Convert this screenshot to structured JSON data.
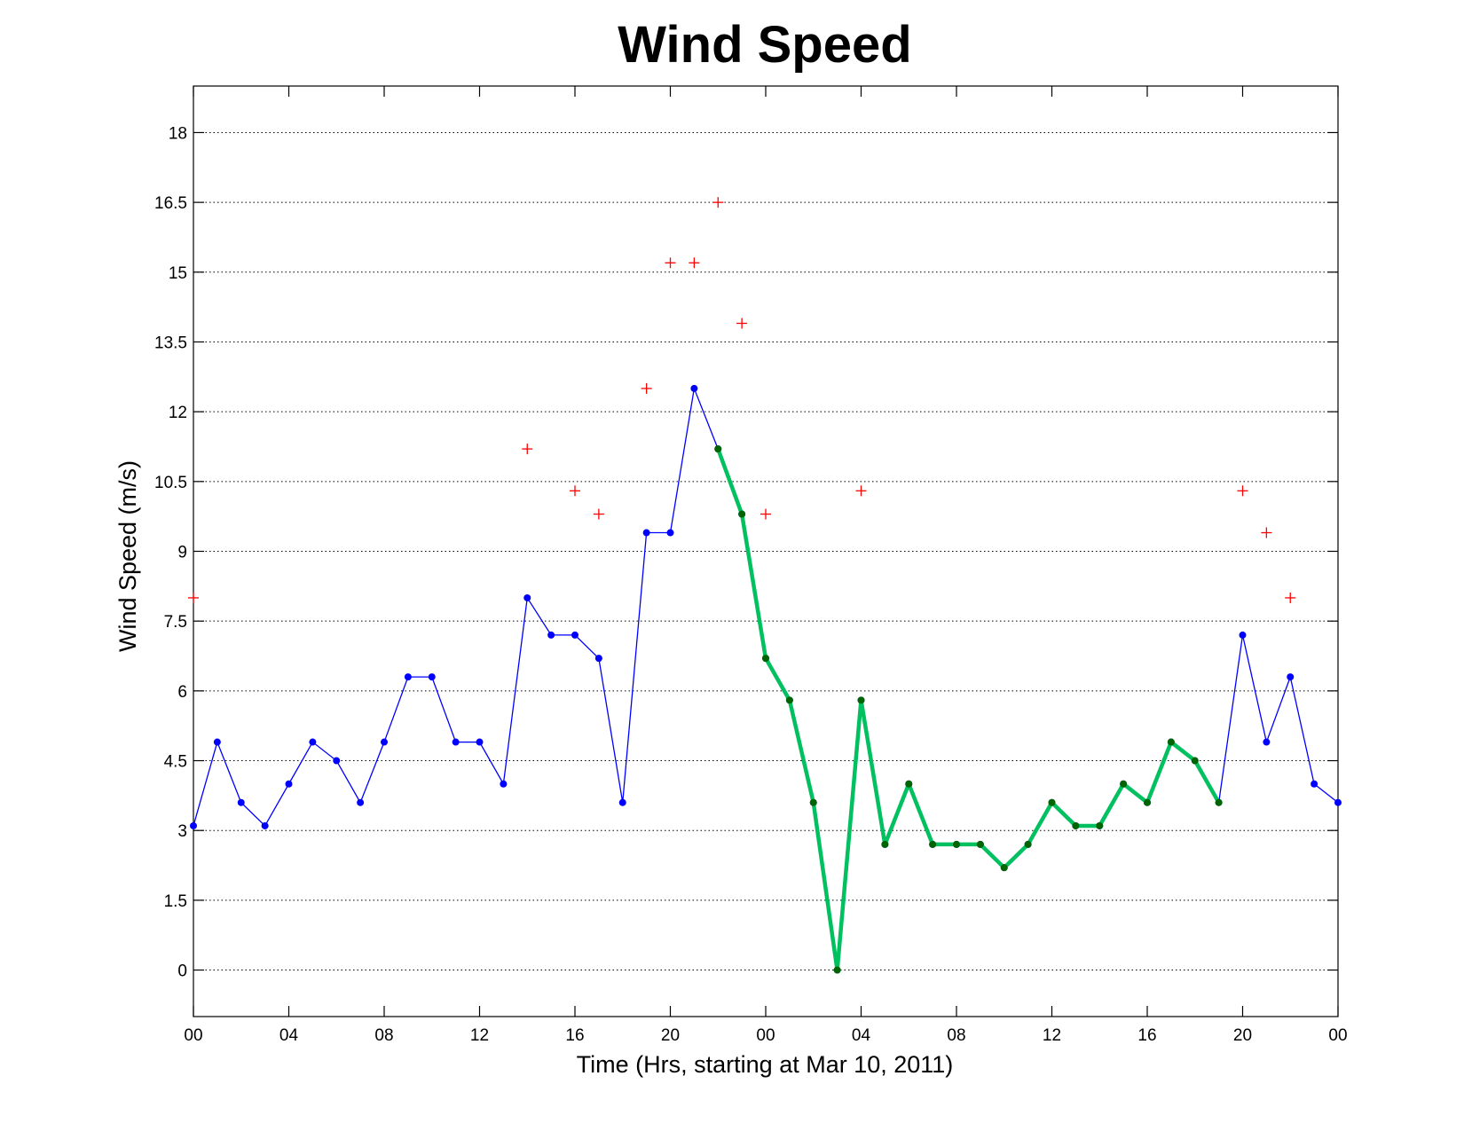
{
  "chart_data": {
    "type": "line",
    "title": "Wind Speed",
    "xlabel": "Time (Hrs, starting at Mar 10, 2011)",
    "ylabel": "Wind Speed (m/s)",
    "x_unit": "hours",
    "xlim": [
      0,
      48
    ],
    "ylim": [
      -1,
      19
    ],
    "grid": true,
    "legend": "none",
    "x_ticks": [
      0,
      4,
      8,
      12,
      16,
      20,
      24,
      28,
      32,
      36,
      40,
      44,
      48
    ],
    "x_tick_labels": [
      "00",
      "04",
      "08",
      "12",
      "16",
      "20",
      "00",
      "04",
      "08",
      "12",
      "16",
      "20",
      "00"
    ],
    "y_ticks": [
      0,
      1.5,
      3,
      4.5,
      6,
      7.5,
      9,
      10.5,
      12,
      13.5,
      15,
      16.5,
      18
    ],
    "y_tick_labels": [
      "0",
      "1.5",
      "3",
      "4.5",
      "6",
      "7.5",
      "9",
      "10.5",
      "12",
      "13.5",
      "15",
      "16.5",
      "18"
    ],
    "colors": {
      "blue_series": "#0000ff",
      "green_series": "#00c060",
      "green_markers": "#006400",
      "gust_markers": "#ff0000"
    },
    "series": [
      {
        "kind": "line-markers",
        "x": [
          0,
          1,
          2,
          3,
          4,
          5,
          6,
          7,
          8,
          9,
          10,
          11,
          12,
          13,
          14,
          15,
          16,
          17,
          18,
          19,
          20,
          21,
          22,
          23,
          24,
          25,
          26,
          27,
          28,
          29,
          30,
          31,
          32,
          33,
          34,
          35,
          36,
          37,
          38,
          39,
          40,
          41,
          42,
          43,
          44,
          45,
          46,
          47,
          48
        ],
        "values": [
          3.1,
          4.9,
          3.6,
          3.1,
          4.0,
          4.9,
          4.5,
          3.6,
          4.9,
          6.3,
          6.3,
          4.9,
          4.9,
          4.0,
          8.0,
          7.2,
          7.2,
          6.7,
          3.6,
          9.4,
          9.4,
          12.5,
          11.2,
          9.8,
          6.7,
          5.8,
          3.6,
          0.0,
          5.8,
          2.7,
          4.0,
          2.7,
          2.7,
          2.7,
          2.2,
          2.7,
          3.6,
          3.1,
          3.1,
          4.0,
          3.6,
          4.9,
          4.5,
          3.6,
          7.2,
          4.9,
          6.3,
          4.0,
          3.6
        ]
      },
      {
        "kind": "thick-line-markers",
        "x": [
          22,
          23,
          24,
          25,
          26,
          27,
          28,
          29,
          30,
          31,
          32,
          33,
          34,
          35,
          36,
          37,
          38,
          39,
          40,
          41,
          42,
          43
        ],
        "values": [
          11.2,
          9.8,
          6.7,
          5.8,
          3.6,
          0.0,
          5.8,
          2.7,
          4.0,
          2.7,
          2.7,
          2.7,
          2.2,
          2.7,
          3.6,
          3.1,
          3.1,
          4.0,
          3.6,
          4.9,
          4.5,
          3.6
        ]
      },
      {
        "kind": "plus-markers",
        "x": [
          0,
          14,
          16,
          17,
          19,
          20,
          21,
          22,
          23,
          24,
          28,
          44,
          45,
          46
        ],
        "values": [
          8.0,
          11.2,
          10.3,
          9.8,
          12.5,
          15.2,
          15.2,
          16.5,
          13.9,
          9.8,
          10.3,
          10.3,
          9.4,
          8.0
        ]
      }
    ]
  }
}
